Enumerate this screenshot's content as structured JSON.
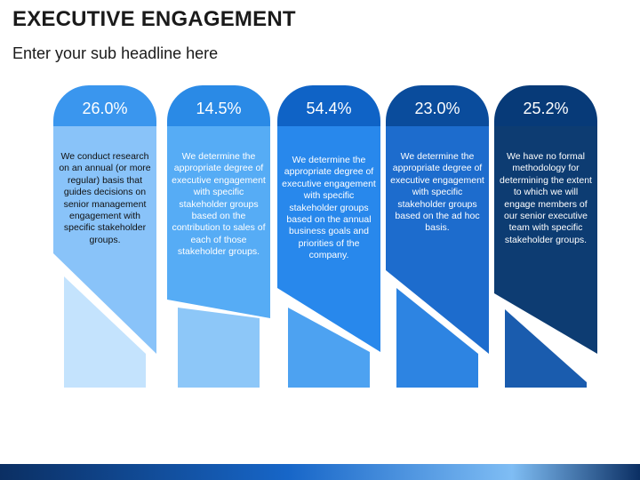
{
  "header": {
    "title": "EXECUTIVE ENGAGEMENT",
    "subtitle": "Enter your sub headline here"
  },
  "columns": [
    {
      "percent": "26.0%",
      "description": "We  conduct research on an annual (or more regular) basis that guides decisions on senior management engagement with specific stakeholder groups.",
      "colors": {
        "top": "#3a96ee",
        "body": "#89c3f9",
        "tail": "#c4e3fd",
        "text": "#111111"
      }
    },
    {
      "percent": "14.5%",
      "description": "We determine the appropriate degree of executive engagement with specific stakeholder groups based on the contribution to sales of each of those stakeholder groups.",
      "colors": {
        "top": "#2a8ae6",
        "body": "#56acf5",
        "tail": "#8dc7f8",
        "text": "#ffffff"
      }
    },
    {
      "percent": "54.4%",
      "description": "We determine the appropriate degree of executive engagement with specific stakeholder groups based on the annual business goals and priorities of the company.",
      "colors": {
        "top": "#0f63c6",
        "body": "#2888ec",
        "tail": "#4da2f1",
        "text": "#ffffff"
      }
    },
    {
      "percent": "23.0%",
      "description": "We determine the appropriate degree of executive engagement with specific stakeholder groups based on the ad hoc basis.",
      "colors": {
        "top": "#0a4c9c",
        "body": "#1d6ccd",
        "tail": "#2d84e2",
        "text": "#ffffff"
      }
    },
    {
      "percent": "25.2%",
      "description": "We have no formal methodology for determining the extent to which we will engage members of our senior executive team with specific stakeholder groups.",
      "colors": {
        "top": "#073a78",
        "body": "#0d3c72",
        "tail": "#1a5cae",
        "text": "#ffffff"
      }
    }
  ],
  "footer": {
    "bar_colors": [
      "#0b2f63",
      "#1766c8",
      "#7fbdf4",
      "#0b2f63"
    ]
  }
}
